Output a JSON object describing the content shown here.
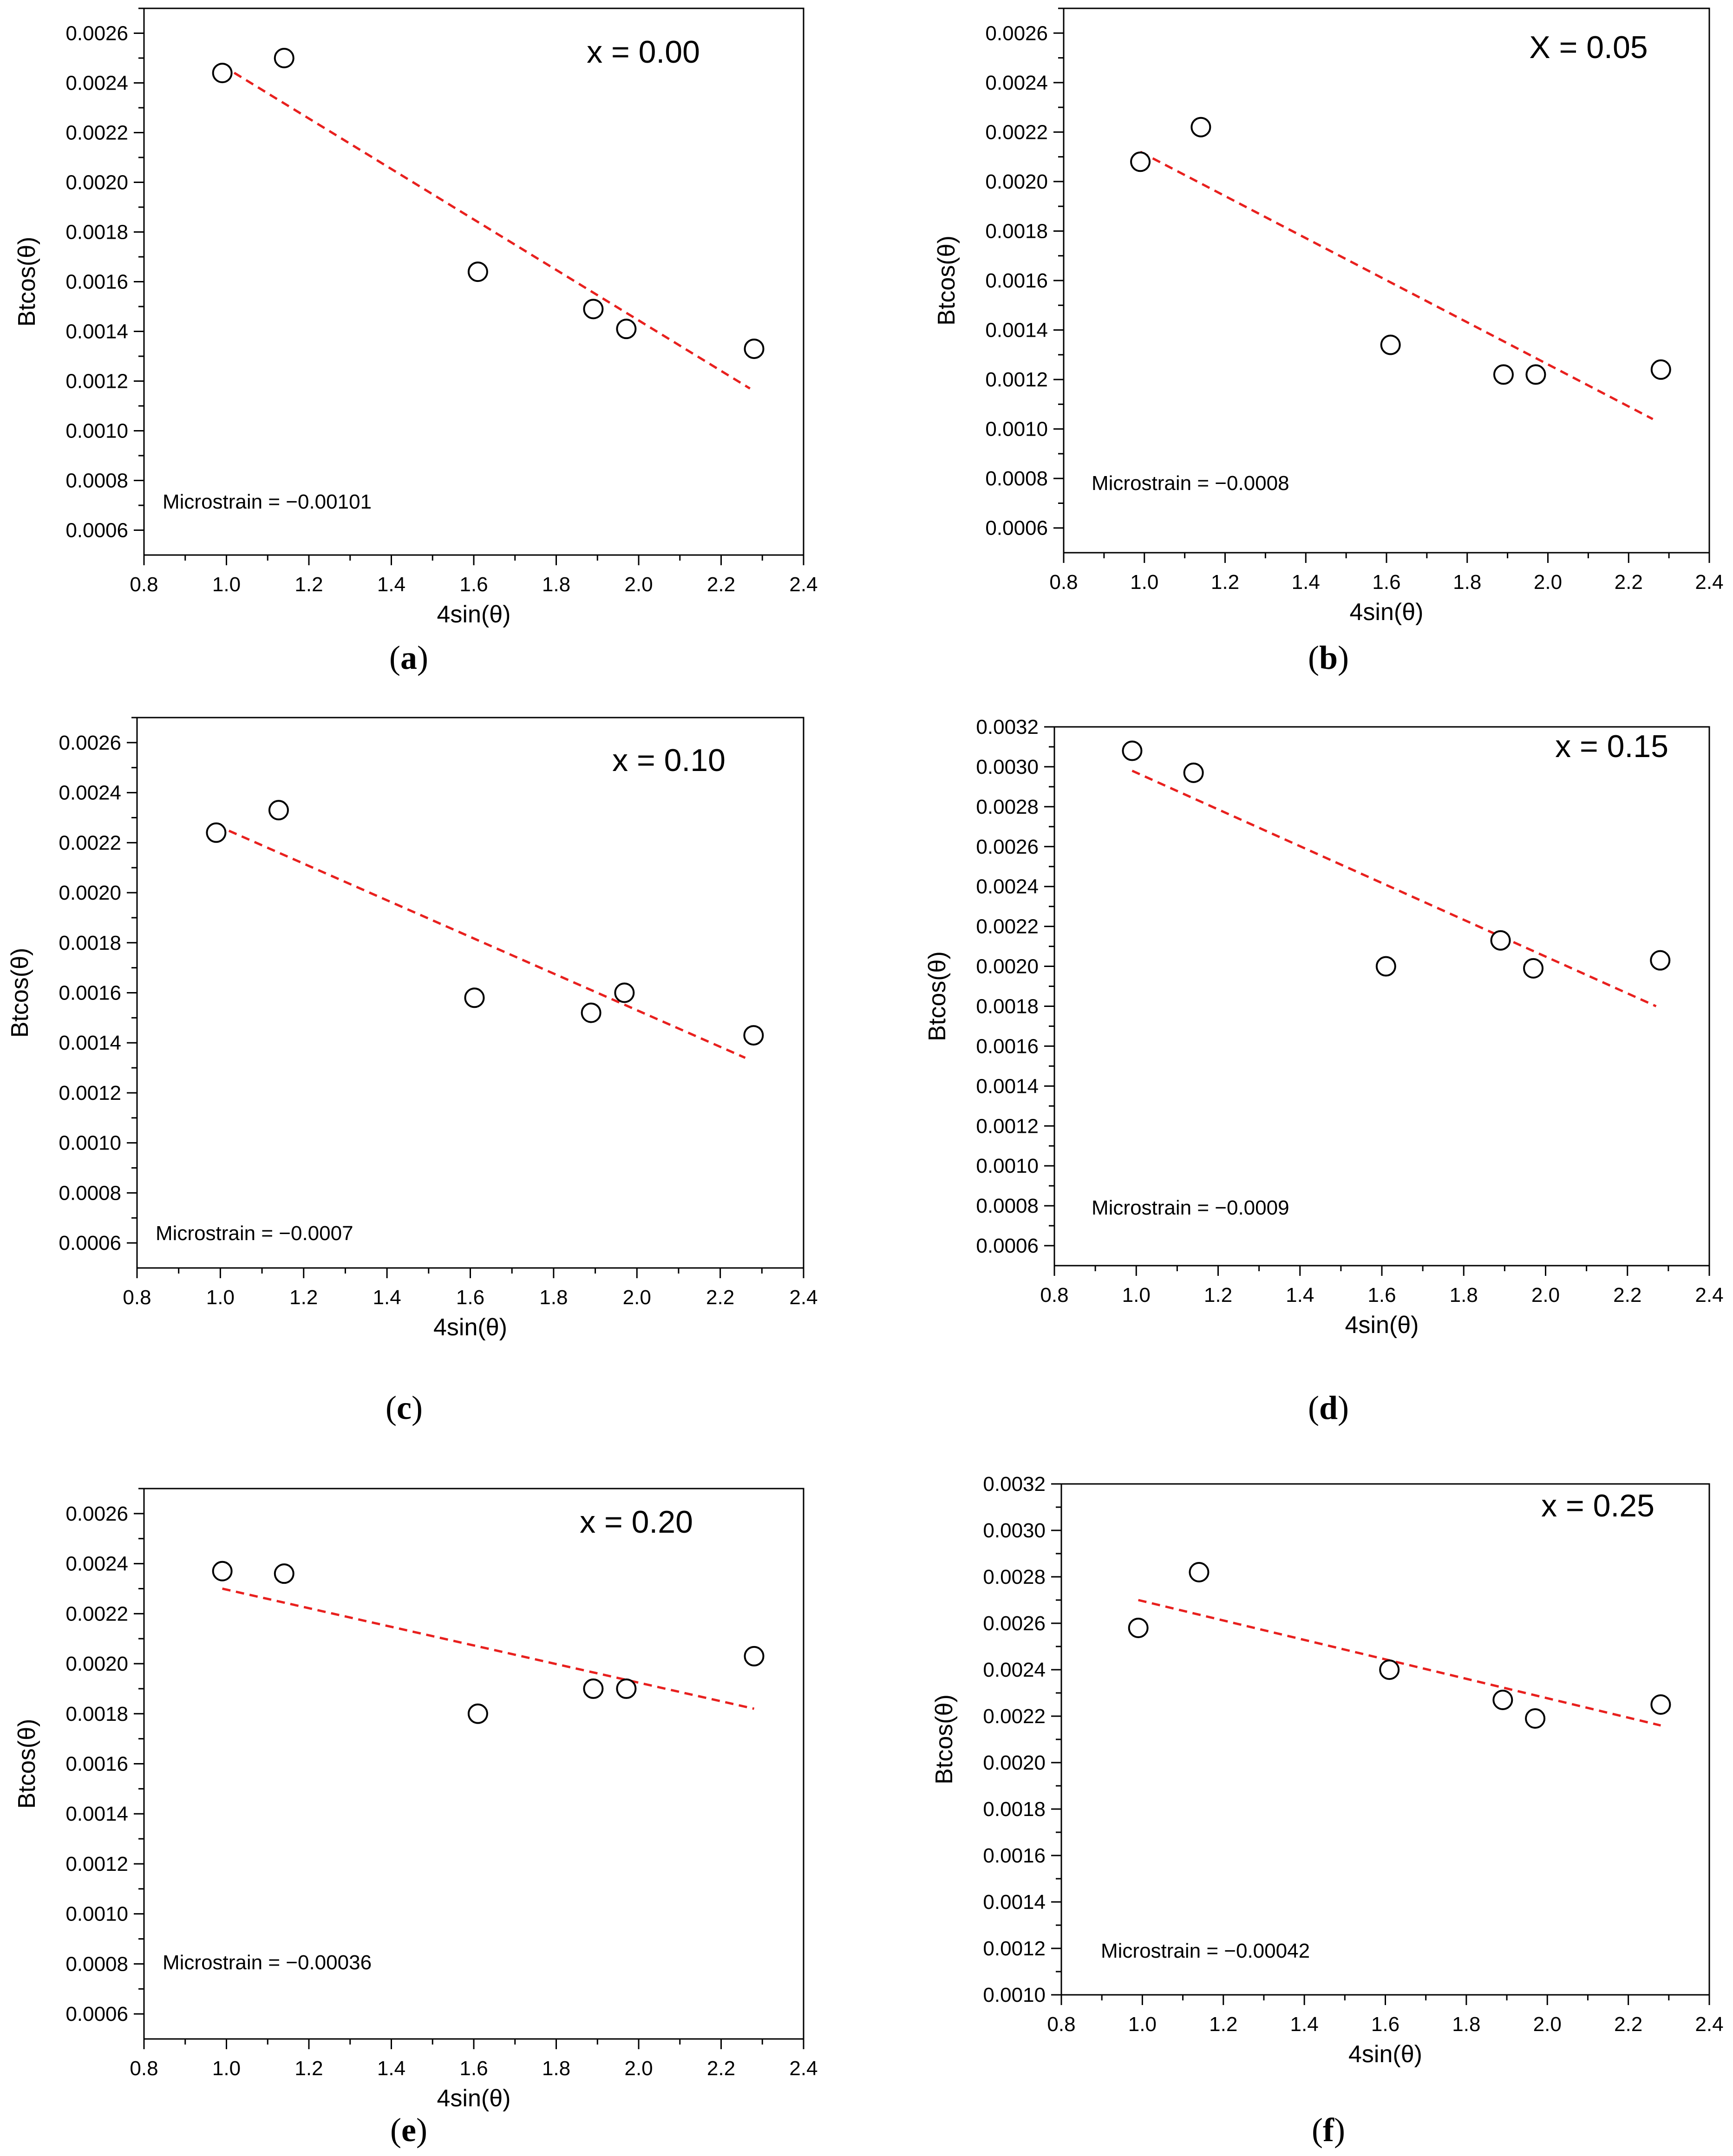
{
  "chart_data": [
    {
      "type": "scatter",
      "panel": "a",
      "caption": {
        "open": "(",
        "letter": "a",
        "close": ")"
      },
      "title": "x = 0.00",
      "xlabel": "4sin(θ)",
      "ylabel": "Btcos(θ)",
      "xlim": [
        0.8,
        2.4
      ],
      "ylim": [
        0.0005,
        0.0027
      ],
      "xticks": [
        "0.8",
        "1.0",
        "1.2",
        "1.4",
        "1.6",
        "1.8",
        "2.0",
        "2.2",
        "2.4"
      ],
      "yticks": [
        "0.0006",
        "0.0008",
        "0.0010",
        "0.0012",
        "0.0014",
        "0.0016",
        "0.0018",
        "0.0020",
        "0.0022",
        "0.0024",
        "0.0026"
      ],
      "x": [
        0.99,
        1.14,
        1.61,
        1.89,
        1.97,
        2.28
      ],
      "y": [
        0.00244,
        0.0025,
        0.00164,
        0.00149,
        0.00141,
        0.00133
      ],
      "fit": {
        "x": [
          0.99,
          2.27
        ],
        "y": [
          0.00247,
          0.00117
        ],
        "color": "#e8201e"
      },
      "annotation": "Microstrain = −0.00101"
    },
    {
      "type": "scatter",
      "panel": "b",
      "caption": {
        "open": "(",
        "letter": "b",
        "close": ")"
      },
      "title": "X = 0.05",
      "xlabel": "4sin(θ)",
      "ylabel": "Btcos(θ)",
      "xlim": [
        0.8,
        2.4
      ],
      "ylim": [
        0.0005,
        0.0027
      ],
      "xticks": [
        "0.8",
        "1.0",
        "1.2",
        "1.4",
        "1.6",
        "1.8",
        "2.0",
        "2.2",
        "2.4"
      ],
      "yticks": [
        "0.0006",
        "0.0008",
        "0.0010",
        "0.0012",
        "0.0014",
        "0.0016",
        "0.0018",
        "0.0020",
        "0.0022",
        "0.0024",
        "0.0026"
      ],
      "x": [
        0.99,
        1.14,
        1.61,
        1.89,
        1.97,
        2.28
      ],
      "y": [
        0.00208,
        0.00222,
        0.00134,
        0.00122,
        0.00122,
        0.00124
      ],
      "fit": {
        "x": [
          0.99,
          2.26
        ],
        "y": [
          0.00212,
          0.00104
        ],
        "color": "#e8201e"
      },
      "annotation": "Microstrain = −0.0008"
    },
    {
      "type": "scatter",
      "panel": "c",
      "caption": {
        "open": "(",
        "letter": "c",
        "close": ")"
      },
      "title": "x = 0.10",
      "xlabel": "4sin(θ)",
      "ylabel": "Btcos(θ)",
      "xlim": [
        0.8,
        2.4
      ],
      "ylim": [
        0.0005,
        0.0027
      ],
      "xticks": [
        "0.8",
        "1.0",
        "1.2",
        "1.4",
        "1.6",
        "1.8",
        "2.0",
        "2.2",
        "2.4"
      ],
      "yticks": [
        "0.0006",
        "0.0008",
        "0.0010",
        "0.0012",
        "0.0014",
        "0.0016",
        "0.0018",
        "0.0020",
        "0.0022",
        "0.0024",
        "0.0026"
      ],
      "x": [
        0.99,
        1.14,
        1.61,
        1.89,
        1.97,
        2.28
      ],
      "y": [
        0.00224,
        0.00233,
        0.00158,
        0.00152,
        0.0016,
        0.00143
      ],
      "fit": {
        "x": [
          0.99,
          2.26
        ],
        "y": [
          0.00227,
          0.00134
        ],
        "color": "#e8201e"
      },
      "annotation": "Microstrain = −0.0007"
    },
    {
      "type": "scatter",
      "panel": "d",
      "caption": {
        "open": "(",
        "letter": "d",
        "close": ")"
      },
      "title": "x = 0.15",
      "xlabel": "4sin(θ)",
      "ylabel": "Btcos(θ)",
      "xlim": [
        0.8,
        2.4
      ],
      "ylim": [
        0.0005,
        0.0032
      ],
      "xticks": [
        "0.8",
        "1.0",
        "1.2",
        "1.4",
        "1.6",
        "1.8",
        "2.0",
        "2.2",
        "2.4"
      ],
      "yticks": [
        "0.0006",
        "0.0008",
        "0.0010",
        "0.0012",
        "0.0014",
        "0.0016",
        "0.0018",
        "0.0020",
        "0.0022",
        "0.0024",
        "0.0026",
        "0.0028",
        "0.0030",
        "0.0032"
      ],
      "x": [
        0.99,
        1.14,
        1.61,
        1.89,
        1.97,
        2.28
      ],
      "y": [
        0.00308,
        0.00297,
        0.002,
        0.00213,
        0.00199,
        0.00203
      ],
      "fit": {
        "x": [
          0.99,
          2.27
        ],
        "y": [
          0.00298,
          0.0018
        ],
        "color": "#e8201e"
      },
      "annotation": "Microstrain = −0.0009"
    },
    {
      "type": "scatter",
      "panel": "e",
      "caption": {
        "open": "(",
        "letter": "e",
        "close": ")"
      },
      "title": "x = 0.20",
      "xlabel": "4sin(θ)",
      "ylabel": "Btcos(θ)",
      "xlim": [
        0.8,
        2.4
      ],
      "ylim": [
        0.0005,
        0.0027
      ],
      "xticks": [
        "0.8",
        "1.0",
        "1.2",
        "1.4",
        "1.6",
        "1.8",
        "2.0",
        "2.2",
        "2.4"
      ],
      "yticks": [
        "0.0006",
        "0.0008",
        "0.0010",
        "0.0012",
        "0.0014",
        "0.0016",
        "0.0018",
        "0.0020",
        "0.0022",
        "0.0024",
        "0.0026"
      ],
      "x": [
        0.99,
        1.14,
        1.61,
        1.89,
        1.97,
        2.28
      ],
      "y": [
        0.00237,
        0.00236,
        0.0018,
        0.0019,
        0.0019,
        0.00203
      ],
      "fit": {
        "x": [
          0.99,
          2.28
        ],
        "y": [
          0.0023,
          0.00182
        ],
        "color": "#e8201e"
      },
      "annotation": "Microstrain = −0.00036"
    },
    {
      "type": "scatter",
      "panel": "f",
      "caption": {
        "open": "(",
        "letter": "f",
        "close": ")"
      },
      "title": "x = 0.25",
      "xlabel": "4sin(θ)",
      "ylabel": "Btcos(θ)",
      "xlim": [
        0.8,
        2.4
      ],
      "ylim": [
        0.001,
        0.0032
      ],
      "xticks": [
        "0.8",
        "1.0",
        "1.2",
        "1.4",
        "1.6",
        "1.8",
        "2.0",
        "2.2",
        "2.4"
      ],
      "yticks": [
        "0.0010",
        "0.0012",
        "0.0014",
        "0.0016",
        "0.0018",
        "0.0020",
        "0.0022",
        "0.0024",
        "0.0026",
        "0.0028",
        "0.0030",
        "0.0032"
      ],
      "x": [
        0.99,
        1.14,
        1.61,
        1.89,
        1.97,
        2.28
      ],
      "y": [
        0.00258,
        0.00282,
        0.0024,
        0.00227,
        0.00219,
        0.00225
      ],
      "fit": {
        "x": [
          0.99,
          2.28
        ],
        "y": [
          0.0027,
          0.00216
        ],
        "color": "#e8201e"
      },
      "annotation": "Microstrain = −0.00042"
    }
  ]
}
